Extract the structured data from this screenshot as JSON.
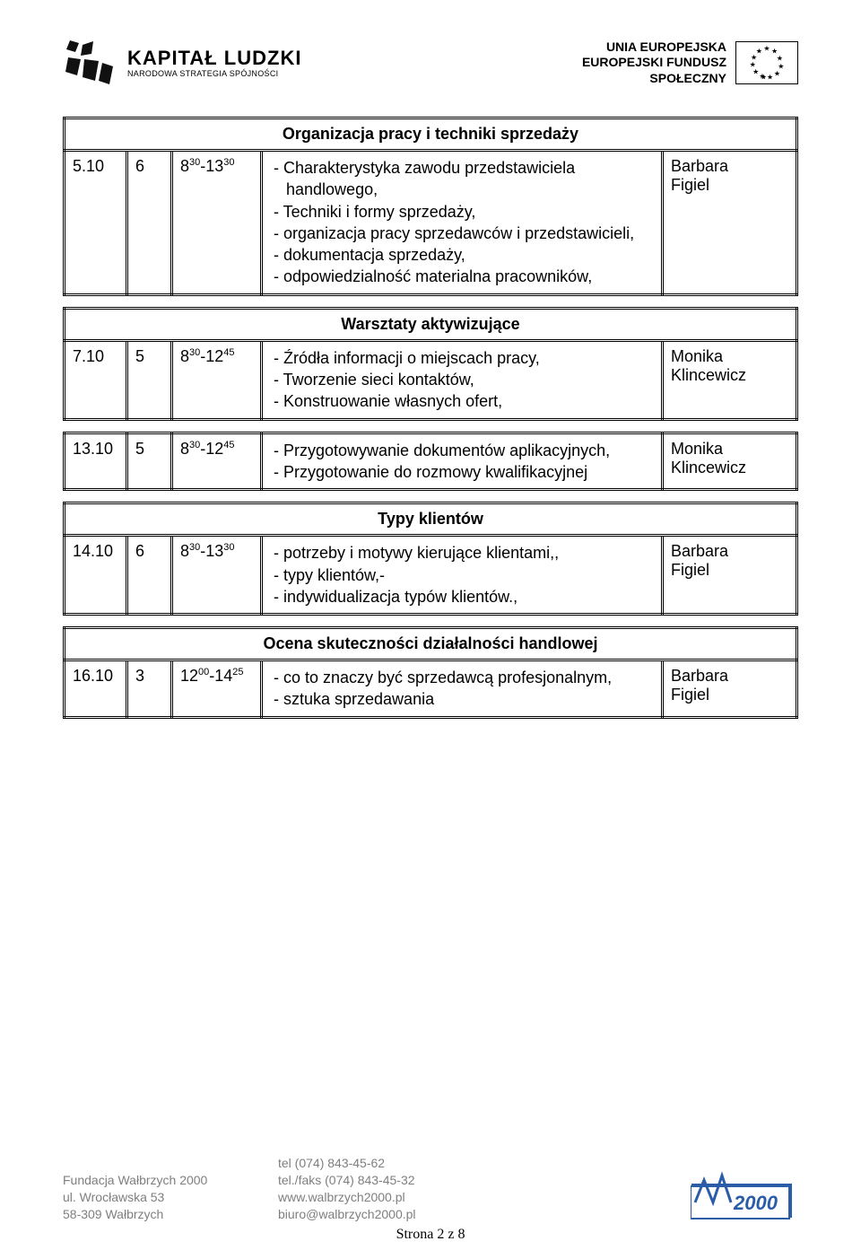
{
  "header": {
    "kl_main": "KAPITAŁ LUDZKI",
    "kl_sub": "NARODOWA STRATEGIA SPÓJNOŚCI",
    "eu_line1": "UNIA EUROPEJSKA",
    "eu_line2": "EUROPEJSKI FUNDUSZ",
    "eu_line3": "SPOŁECZNY"
  },
  "sections": [
    {
      "title": "Organizacja pracy i techniki sprzedaży",
      "rows": [
        {
          "date": "5.10",
          "hours": "6",
          "time_base": "8",
          "time_sup1": "30",
          "time_sep": "-13",
          "time_sup2": "30",
          "person": "Barbara Figiel",
          "items": [
            "Charakterystyka zawodu przedstawiciela handlowego,",
            "Techniki i formy sprzedaży,",
            "organizacja pracy sprzedawców i przedstawicieli,",
            "dokumentacja sprzedaży,",
            "odpowiedzialność materialna pracowników,"
          ]
        }
      ]
    },
    {
      "title": "Warsztaty aktywizujące",
      "rows": [
        {
          "date": "7.10",
          "hours": "5",
          "time_base": "8",
          "time_sup1": "30",
          "time_sep": "-12",
          "time_sup2": "45",
          "person": "Monika Klincewicz",
          "items": [
            "Źródła informacji o miejscach pracy,",
            "Tworzenie sieci kontaktów,",
            "Konstruowanie własnych ofert,"
          ]
        }
      ]
    },
    {
      "title": "",
      "rows": [
        {
          "date": "13.10",
          "hours": "5",
          "time_base": "8",
          "time_sup1": "30",
          "time_sep": "-12",
          "time_sup2": "45",
          "person": "Monika Klincewicz",
          "items": [
            "Przygotowywanie dokumentów aplikacyjnych,",
            "Przygotowanie do rozmowy kwalifikacyjnej"
          ]
        }
      ]
    },
    {
      "title": "Typy klientów",
      "rows": [
        {
          "date": "14.10",
          "hours": "6",
          "time_base": "8",
          "time_sup1": "30",
          "time_sep": "-13",
          "time_sup2": "30",
          "person": "Barbara Figiel",
          "items": [
            "potrzeby i motywy kierujące klientami,,",
            "typy klientów,-",
            "indywidualizacja typów klientów.,"
          ]
        }
      ]
    },
    {
      "title": "Ocena skuteczności działalności handlowej",
      "rows": [
        {
          "date": "16.10",
          "hours": "3",
          "time_base": "12",
          "time_sup1": "00",
          "time_sep": "-14",
          "time_sup2": "25",
          "person": "Barbara Figiel",
          "items": [
            "co to znaczy być sprzedawcą profesjonalnym,",
            "sztuka sprzedawania"
          ]
        }
      ]
    }
  ],
  "footer": {
    "org": "Fundacja Wałbrzych 2000",
    "addr1": "ul. Wrocławska 53",
    "addr2": "58-309 Wałbrzych",
    "tel": "tel (074) 843-45-62",
    "fax": "tel./faks (074) 843-45-32",
    "web": "www.walbrzych2000.pl",
    "email": "biuro@walbrzych2000.pl",
    "logo_text": "W2000"
  },
  "page": {
    "label": "Strona 2 z 8"
  }
}
